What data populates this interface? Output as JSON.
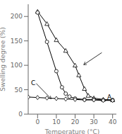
{
  "chart_data": {
    "type": "line",
    "xlabel": "Temperature (°C)",
    "ylabel": "Swelling degree (%)",
    "xlim": [
      -5,
      42
    ],
    "ylim": [
      0,
      225
    ],
    "xticks": [
      0,
      10,
      20,
      30,
      40
    ],
    "yticks": [
      0,
      50,
      100,
      150,
      200
    ],
    "series": [
      {
        "x": [
          0,
          5,
          10,
          15,
          20,
          22,
          25,
          27,
          30,
          35,
          40
        ],
        "values": [
          210,
          185,
          152,
          130,
          100,
          80,
          52,
          38,
          33,
          30,
          29
        ],
        "marker": "triangle",
        "color": "#000000"
      },
      {
        "x": [
          0,
          5,
          10,
          13,
          15,
          17,
          20,
          25,
          30,
          35,
          40
        ],
        "values": [
          208,
          148,
          88,
          55,
          42,
          36,
          32,
          30,
          30,
          29,
          29
        ],
        "marker": "circle",
        "color": "#000000"
      },
      {
        "x": [
          -5,
          0,
          5,
          10,
          15,
          20,
          25,
          30,
          35,
          40
        ],
        "values": [
          35,
          34,
          33,
          32,
          31,
          30,
          29,
          29,
          28,
          28
        ],
        "marker": "diamond",
        "color": "#000000"
      }
    ],
    "annotations": [
      "C",
      "A"
    ]
  }
}
